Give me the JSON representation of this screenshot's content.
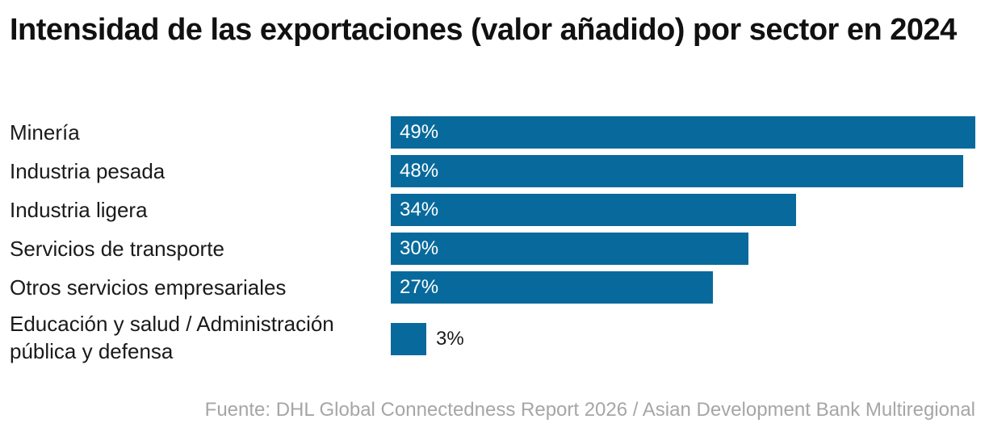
{
  "title": "Intensidad de las exportaciones (valor añadido) por sector en 2024",
  "source": "Fuente: DHL Global Connectedness Report 2026 / Asian Development Bank Multiregional",
  "colors": {
    "bar": "#086a9c",
    "label_inside": "#ffffff",
    "label_outside": "#1a1a1a",
    "source": "#a6a6a6"
  },
  "chart_data": {
    "type": "bar",
    "orientation": "horizontal",
    "title": "Intensidad de las exportaciones (valor añadido) por sector en 2024",
    "categories": [
      "Minería",
      "Industria pesada",
      "Industria ligera",
      "Servicios de transporte",
      "Otros servicios empresariales",
      "Educación y salud / Administración pública y defensa"
    ],
    "values": [
      49,
      48,
      34,
      30,
      27,
      3
    ],
    "value_labels": [
      "49%",
      "48%",
      "34%",
      "30%",
      "27%",
      "3%"
    ],
    "unit": "%",
    "xlim": [
      0,
      49
    ],
    "grid": false,
    "legend": "none"
  }
}
